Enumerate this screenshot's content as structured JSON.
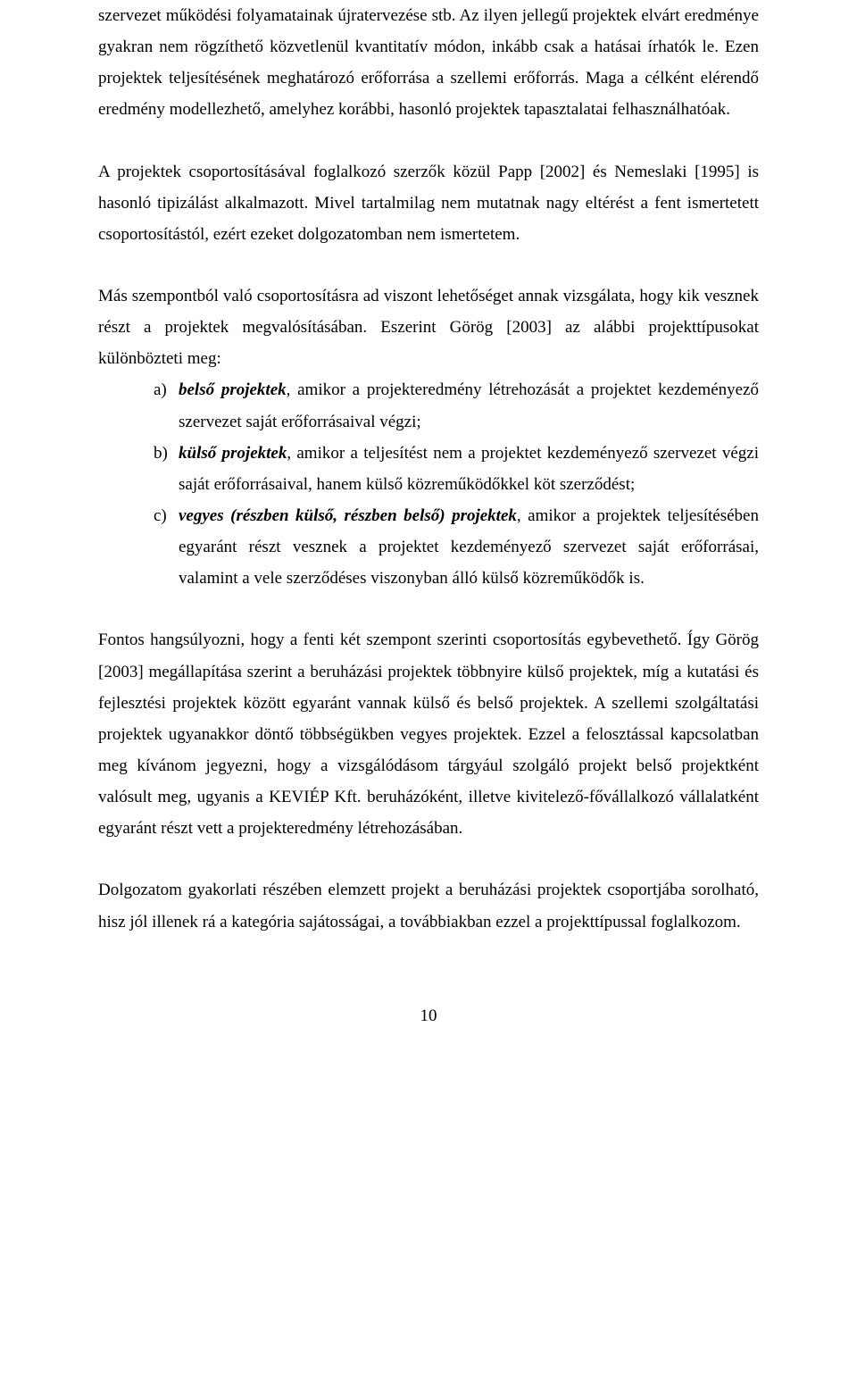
{
  "para1": "szervezet működési folyamatainak újratervezése stb. Az ilyen jellegű projektek elvárt eredménye gyakran nem rögzíthető közvetlenül kvantitatív módon, inkább csak a hatásai írhatók le. Ezen projektek teljesítésének meghatározó erőforrása a szellemi erőforrás. Maga a célként elérendő eredmény modellezhető, amelyhez korábbi, hasonló projektek tapasztalatai felhasználhatóak.",
  "para2": "A projektek csoportosításával foglalkozó szerzők közül Papp [2002] és Nemeslaki [1995] is hasonló tipizálást alkalmazott. Mivel tartalmilag nem mutatnak nagy eltérést a fent ismertetett csoportosítástól, ezért ezeket dolgozatomban nem ismertetem.",
  "para3": "Más szempontból való csoportosításra ad viszont lehetőséget annak vizsgálata, hogy kik vesznek részt a projektek megvalósításában. Eszerint Görög [2003] az alábbi projekttípusokat különbözteti meg:",
  "list": {
    "a": {
      "marker": "a)",
      "lead": "belső projektek",
      "rest": ", amikor a projekteredmény létrehozását a projektet kezdeményező szervezet saját erőforrásaival végzi;"
    },
    "b": {
      "marker": "b)",
      "lead": "külső projektek",
      "rest": ", amikor a teljesítést nem a projektet kezdeményező szervezet végzi saját erőforrásaival, hanem külső közreműködőkkel köt szerződést;"
    },
    "c": {
      "marker": "c)",
      "lead": "vegyes (részben külső, részben belső) projektek",
      "rest": ", amikor a projektek teljesítésében egyaránt részt vesznek a projektet kezdeményező szervezet saját erőforrásai, valamint a vele szerződéses viszonyban álló külső közreműködők is."
    }
  },
  "para4": "Fontos hangsúlyozni, hogy a fenti két szempont szerinti csoportosítás egybevethető. Így Görög [2003] megállapítása szerint a beruházási projektek többnyire külső projektek, míg a kutatási és fejlesztési projektek között egyaránt vannak külső és belső projektek. A szellemi szolgáltatási projektek ugyanakkor döntő többségükben vegyes projektek. Ezzel a felosztással kapcsolatban meg kívánom jegyezni, hogy a vizsgálódásom tárgyául szolgáló projekt belső projektként valósult meg, ugyanis a KEVIÉP Kft. beruházóként, illetve kivitelező-fővállalkozó vállalatként egyaránt részt vett a projekteredmény létrehozásában.",
  "para5": "Dolgozatom gyakorlati részében elemzett projekt a beruházási projektek csoportjába sorolható, hisz jól illenek rá a kategória sajátosságai, a továbbiakban ezzel a projekttípussal foglalkozom.",
  "pageNumber": "10"
}
